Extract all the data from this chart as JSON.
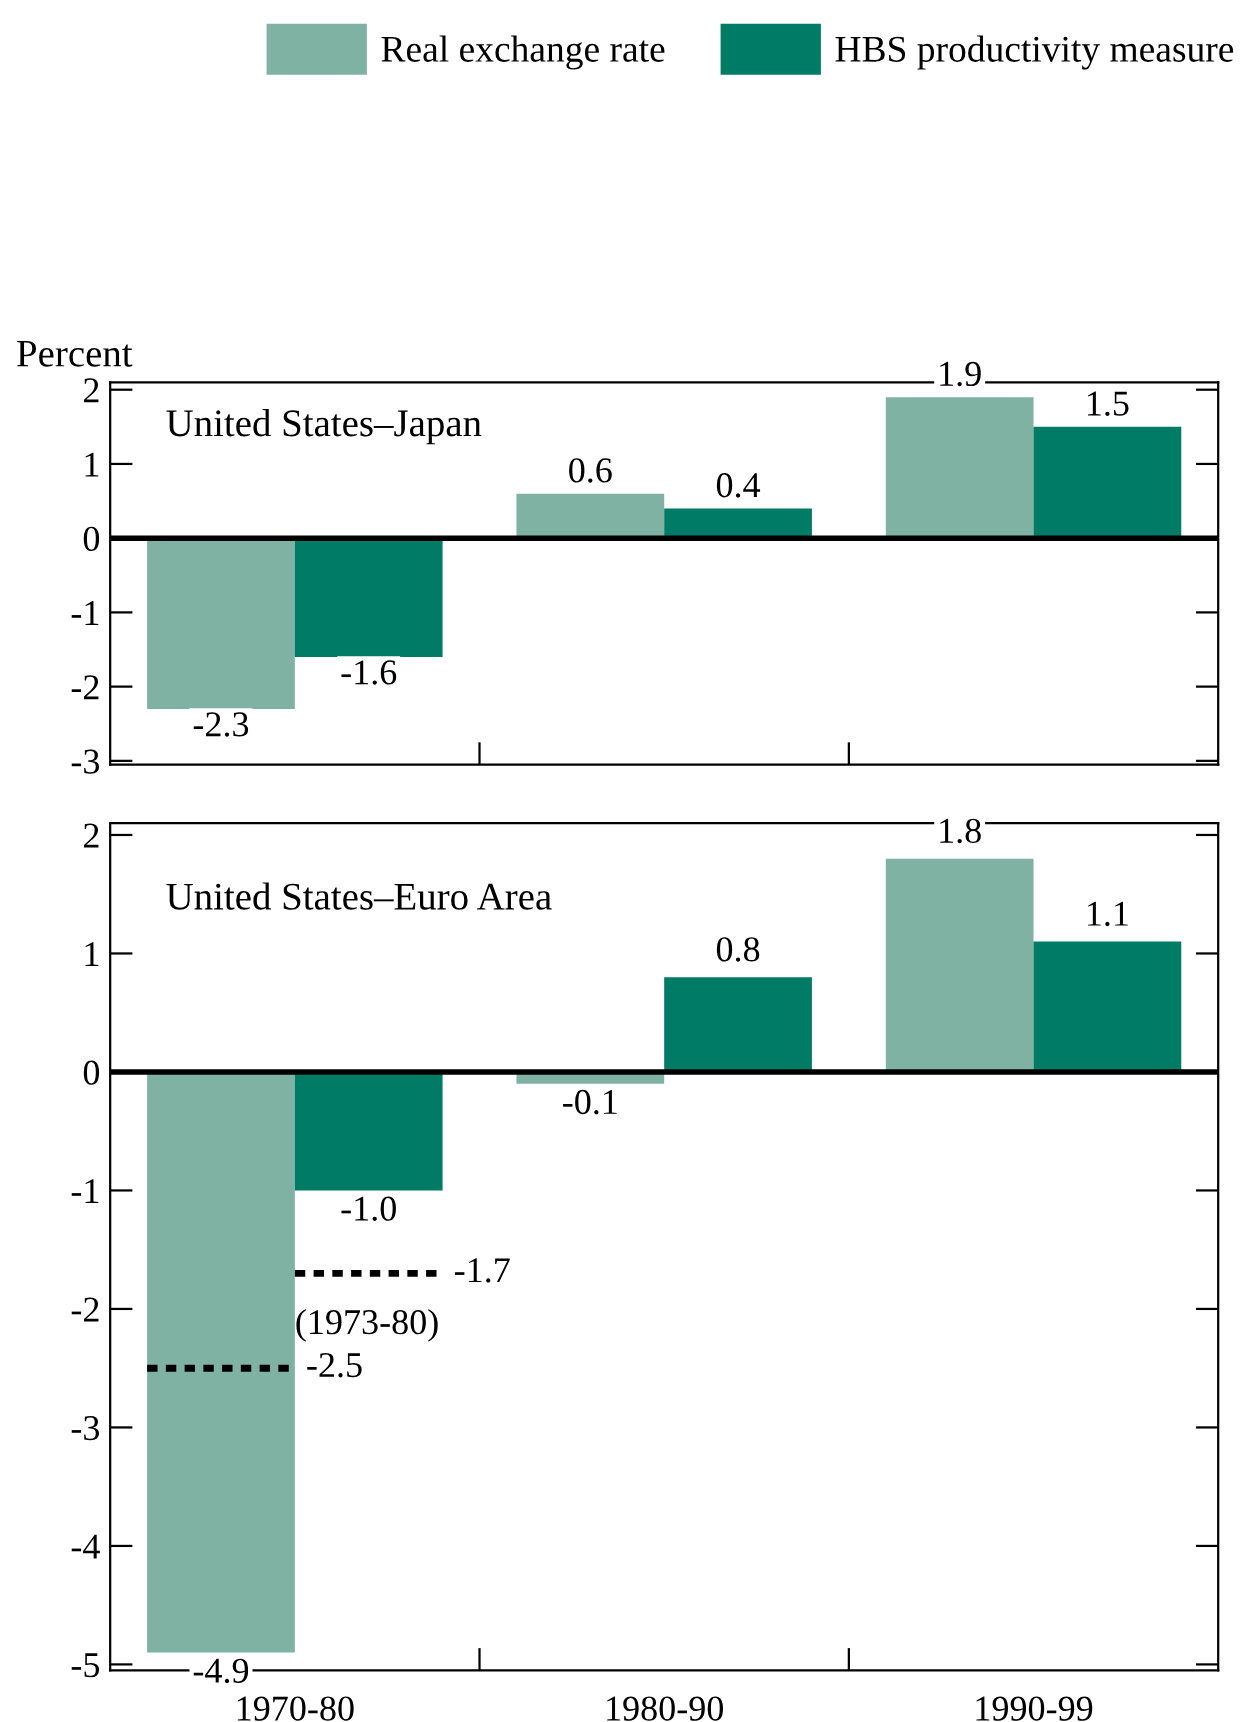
{
  "chart_data": [
    {
      "type": "bar",
      "title": "United States–Japan",
      "ylabel": "Percent",
      "categories": [
        "1970-80",
        "1980-90",
        "1990-99"
      ],
      "series": [
        {
          "name": "Real exchange rate",
          "color": "#7fb2a3",
          "values": [
            -2.3,
            0.6,
            1.9
          ],
          "value_labels": [
            "-2.3",
            "0.6",
            "1.9"
          ]
        },
        {
          "name": "HBS productivity measure",
          "color": "#007b65",
          "values": [
            -1.6,
            0.4,
            1.5
          ],
          "value_labels": [
            "-1.6",
            "0.4",
            "1.5"
          ]
        }
      ],
      "ylim": [
        -3.05,
        2.1
      ],
      "yticks": [
        -3,
        -2,
        -1,
        0,
        1,
        2
      ],
      "tick_labels": "y",
      "legend": "top"
    },
    {
      "type": "bar",
      "title": "United States–Euro Area",
      "categories": [
        "1970-80",
        "1980-90",
        "1990-99"
      ],
      "series": [
        {
          "color": "#7fb2a3",
          "values": [
            -4.9,
            -0.1,
            1.8
          ],
          "value_labels": [
            "-4.9",
            "-0.1",
            "1.8"
          ]
        },
        {
          "color": "#007b65",
          "values": [
            -1.0,
            0.8,
            1.1
          ],
          "value_labels": [
            "-1.0",
            "0.8",
            "1.1"
          ]
        }
      ],
      "ref_lines": [
        {
          "axis": "y",
          "value": -2.5,
          "label": "-2.5",
          "color": "#000000",
          "line_style": "dotted"
        },
        {
          "axis": "y",
          "value": -1.7,
          "label": "-1.7",
          "color": "#000000",
          "line_style": "dotted"
        }
      ],
      "annotations": [
        {
          "text": "(1973-80)",
          "x": "1970-80",
          "y": -1.7
        }
      ],
      "ylim": [
        -5.05,
        2.1
      ],
      "yticks": [
        -5,
        -4,
        -3,
        -2,
        -1,
        0,
        1,
        2
      ]
    }
  ]
}
